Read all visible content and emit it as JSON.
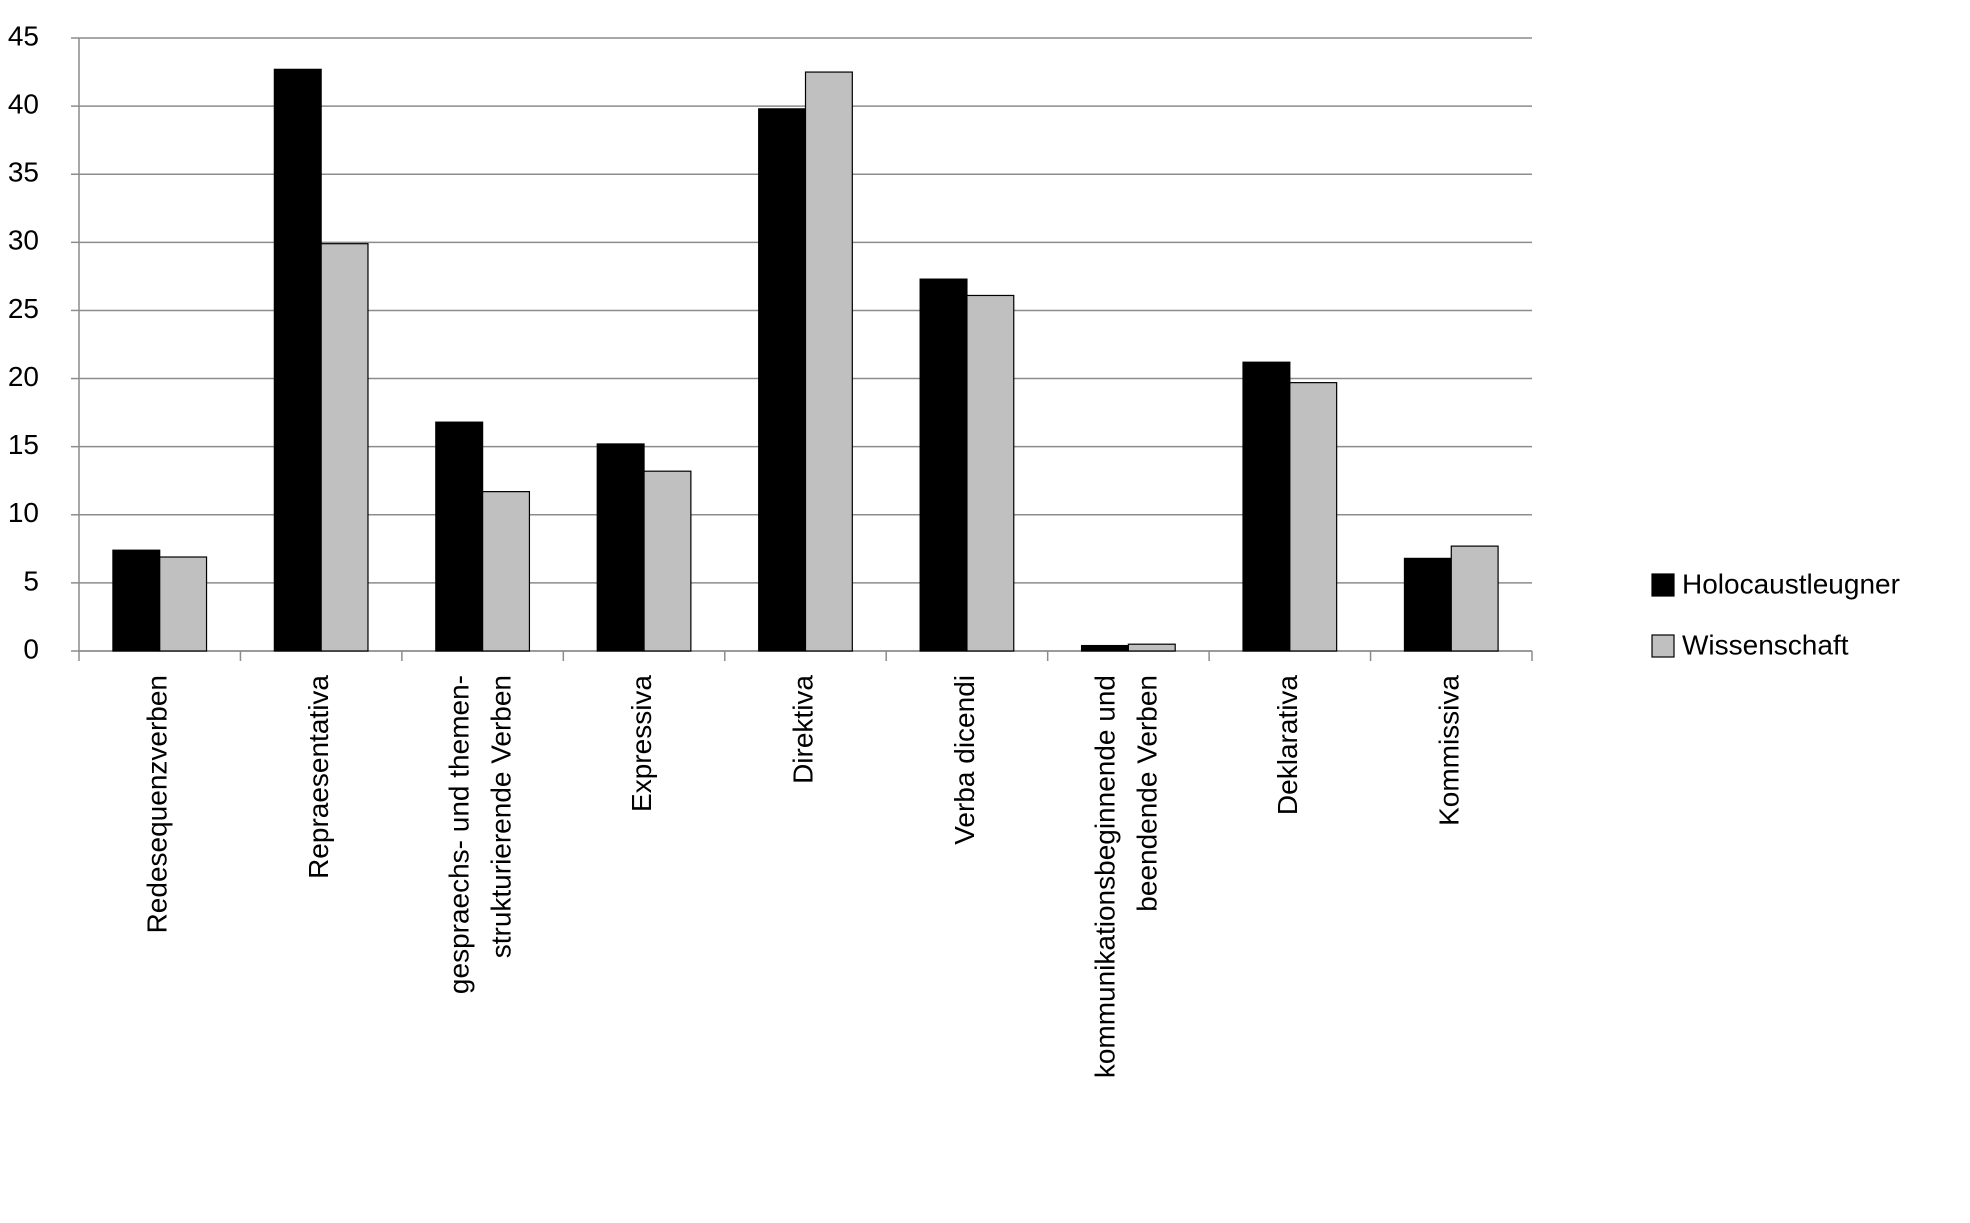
{
  "chart_data": {
    "type": "bar",
    "categories": [
      "Redesequenzverben",
      "Repraesentativa",
      "gespraechs- und themen-\nstrukturierende Verben",
      "Expressiva",
      "Direktiva",
      "Verba dicendi",
      "kommunikationsbeginnende und\nbeendende Verben",
      "Deklarativa",
      "Kommissiva"
    ],
    "series": [
      {
        "name": "Holocaustleugner",
        "color": "#000000",
        "values": [
          7.4,
          42.7,
          16.8,
          15.2,
          39.8,
          27.3,
          0.4,
          21.2,
          6.8
        ]
      },
      {
        "name": "Wissenschaft",
        "color": "#c0c0c0",
        "values": [
          6.9,
          29.9,
          11.7,
          13.2,
          42.5,
          26.1,
          0.5,
          19.7,
          7.7
        ]
      }
    ],
    "ylim": [
      0,
      45
    ],
    "yticks": [
      0,
      5,
      10,
      15,
      20,
      25,
      30,
      35,
      40,
      45
    ],
    "grid": true,
    "legend": "right"
  }
}
